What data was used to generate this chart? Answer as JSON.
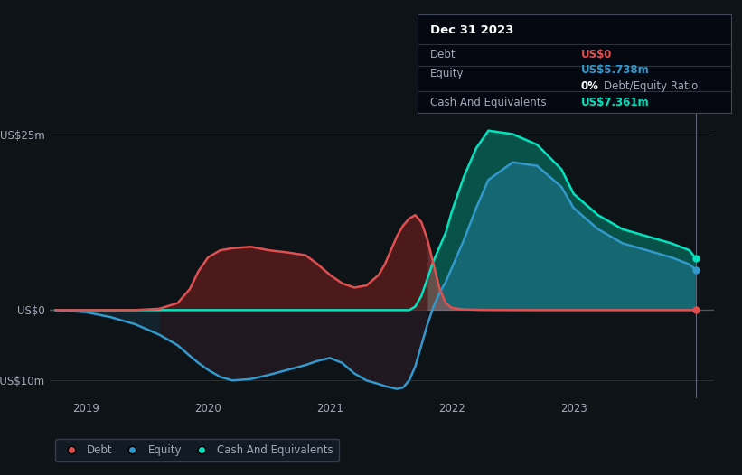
{
  "bg_color": "#0e1318",
  "plot_bg_color": "#0e1318",
  "grid_color": "#253040",
  "text_color": "#a0aab8",
  "title_color": "#ffffff",
  "debt_color": "#e05050",
  "equity_color": "#3399cc",
  "cash_color": "#00e5c0",
  "ylim": [
    -12.5,
    28
  ],
  "xlim": [
    2018.7,
    2024.15
  ],
  "yticks_labels": [
    "US$25m",
    "US$0",
    "-US$10m"
  ],
  "yticks_values": [
    25,
    0,
    -10
  ],
  "xticks": [
    2019,
    2020,
    2021,
    2022,
    2023
  ],
  "x": [
    2018.75,
    2019.0,
    2019.2,
    2019.4,
    2019.6,
    2019.75,
    2019.85,
    2019.92,
    2020.0,
    2020.1,
    2020.2,
    2020.35,
    2020.5,
    2020.65,
    2020.8,
    2020.9,
    2021.0,
    2021.1,
    2021.2,
    2021.3,
    2021.4,
    2021.45,
    2021.5,
    2021.55,
    2021.6,
    2021.65,
    2021.7,
    2021.75,
    2021.8,
    2021.85,
    2021.9,
    2021.95,
    2022.0,
    2022.1,
    2022.2,
    2022.3,
    2022.5,
    2022.7,
    2022.9,
    2023.0,
    2023.2,
    2023.4,
    2023.6,
    2023.8,
    2023.95,
    2024.0
  ],
  "debt": [
    0.0,
    0.0,
    0.0,
    0.0,
    0.2,
    1.0,
    3.0,
    5.5,
    7.5,
    8.5,
    8.8,
    9.0,
    8.5,
    8.2,
    7.8,
    6.5,
    5.0,
    3.8,
    3.2,
    3.5,
    5.0,
    6.5,
    8.5,
    10.5,
    12.0,
    13.0,
    13.5,
    12.5,
    10.0,
    6.5,
    3.0,
    1.0,
    0.3,
    0.1,
    0.05,
    0.02,
    0.01,
    0.0,
    0.0,
    0.0,
    0.0,
    0.0,
    0.0,
    0.0,
    0.0,
    0.0
  ],
  "equity": [
    0.0,
    -0.3,
    -1.0,
    -2.0,
    -3.5,
    -5.0,
    -6.5,
    -7.5,
    -8.5,
    -9.5,
    -10.0,
    -9.8,
    -9.2,
    -8.5,
    -7.8,
    -7.2,
    -6.8,
    -7.5,
    -9.0,
    -10.0,
    -10.5,
    -10.8,
    -11.0,
    -11.2,
    -11.0,
    -10.0,
    -8.0,
    -5.0,
    -2.0,
    0.5,
    2.5,
    4.0,
    6.0,
    10.0,
    14.5,
    18.5,
    21.0,
    20.5,
    17.5,
    14.5,
    11.5,
    9.5,
    8.5,
    7.5,
    6.5,
    5.738
  ],
  "cash": [
    0.0,
    0.0,
    0.0,
    0.0,
    0.0,
    0.0,
    0.0,
    0.0,
    0.0,
    0.0,
    0.0,
    0.0,
    0.0,
    0.0,
    0.0,
    0.0,
    0.0,
    0.0,
    0.0,
    0.0,
    0.0,
    0.0,
    0.0,
    0.0,
    0.0,
    0.0,
    0.5,
    2.0,
    4.5,
    7.0,
    9.0,
    11.0,
    14.0,
    19.0,
    23.0,
    25.5,
    25.0,
    23.5,
    20.0,
    16.5,
    13.5,
    11.5,
    10.5,
    9.5,
    8.5,
    7.361
  ],
  "legend_items": [
    {
      "label": "Debt",
      "color": "#e05050"
    },
    {
      "label": "Equity",
      "color": "#3399cc"
    },
    {
      "label": "Cash And Equivalents",
      "color": "#00e5c0"
    }
  ],
  "tooltip_title": "Dec 31 2023",
  "tooltip_rows": [
    {
      "label": "Debt",
      "value": "US$0",
      "value_color": "#e05050",
      "sub": null
    },
    {
      "label": "Equity",
      "value": "US$5.738m",
      "value_color": "#3399cc",
      "sub": "0% Debt/Equity Ratio"
    },
    {
      "label": "Cash And Equivalents",
      "value": "US$7.361m",
      "value_color": "#00e5c0",
      "sub": null
    }
  ]
}
